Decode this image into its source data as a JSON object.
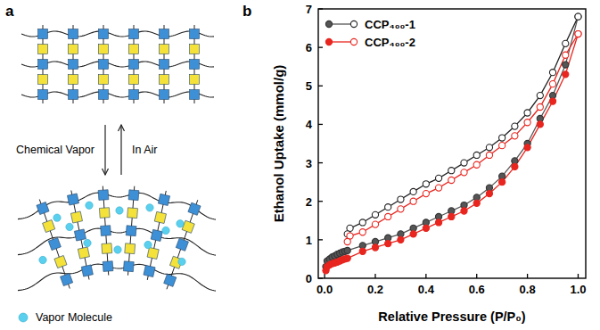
{
  "panel_labels": [
    "a",
    "b"
  ],
  "diagram": {
    "forward_label": "Chemical Vapor",
    "backward_label": "In Air",
    "legend_label": "Vapor Molecule"
  },
  "chart_data": {
    "type": "line",
    "x_label": "Relative Pressure (P/P₀)",
    "y_label": "Ethanol Uptake (mmol/g)",
    "xlim": [
      -0.025,
      1.03
    ],
    "ylim": [
      0,
      7
    ],
    "xticks": [
      {
        "value": 0,
        "label": "0.0"
      },
      0.2,
      0.4,
      0.6,
      0.8,
      {
        "value": 1,
        "label": "1.0"
      }
    ],
    "yticks": [
      0,
      1,
      2,
      3,
      4,
      5,
      6,
      7
    ],
    "legend": "upper-left",
    "grid": false,
    "series": [
      {
        "name": "CCP₄₀₀-1",
        "color": "#555555",
        "marker": "circle",
        "x": [
          0.005,
          0.01,
          0.02,
          0.03,
          0.04,
          0.05,
          0.06,
          0.07,
          0.08,
          0.09,
          0.15,
          0.2,
          0.25,
          0.3,
          0.35,
          0.4,
          0.45,
          0.5,
          0.55,
          0.6,
          0.65,
          0.7,
          0.75,
          0.8,
          0.85,
          0.9,
          0.95,
          1.0
        ],
        "values": [
          0.3,
          0.45,
          0.5,
          0.55,
          0.58,
          0.62,
          0.65,
          0.68,
          0.7,
          0.72,
          0.85,
          0.95,
          1.05,
          1.15,
          1.3,
          1.45,
          1.6,
          1.75,
          1.9,
          2.1,
          2.35,
          2.65,
          3.05,
          3.5,
          4.15,
          4.75,
          5.55,
          6.8
        ]
      },
      {
        "name": "CCP₄₀₀-1",
        "color": "#222222",
        "marker": "open-circle",
        "x": [
          1.0,
          0.95,
          0.9,
          0.85,
          0.8,
          0.75,
          0.7,
          0.65,
          0.6,
          0.55,
          0.5,
          0.45,
          0.4,
          0.35,
          0.3,
          0.25,
          0.2,
          0.15,
          0.1,
          0.09
        ],
        "values": [
          6.8,
          6.1,
          5.35,
          4.75,
          4.3,
          3.95,
          3.65,
          3.4,
          3.2,
          3.0,
          2.8,
          2.6,
          2.45,
          2.25,
          2.05,
          1.85,
          1.65,
          1.45,
          1.3,
          1.15
        ]
      },
      {
        "name": "CCP₄₀₀-2",
        "color": "#e8251f",
        "marker": "circle",
        "x": [
          0.005,
          0.01,
          0.02,
          0.03,
          0.04,
          0.05,
          0.06,
          0.07,
          0.08,
          0.09,
          0.15,
          0.2,
          0.25,
          0.3,
          0.35,
          0.4,
          0.45,
          0.5,
          0.55,
          0.6,
          0.65,
          0.7,
          0.75,
          0.8,
          0.85,
          0.9,
          0.95,
          1.0
        ],
        "values": [
          0.2,
          0.3,
          0.35,
          0.38,
          0.4,
          0.42,
          0.45,
          0.48,
          0.5,
          0.52,
          0.7,
          0.8,
          0.9,
          1.0,
          1.15,
          1.3,
          1.45,
          1.6,
          1.75,
          1.95,
          2.2,
          2.5,
          2.9,
          3.4,
          4.0,
          4.6,
          5.3,
          6.35
        ]
      },
      {
        "name": "CCP₄₀₀-2",
        "color": "#e8251f",
        "marker": "open-circle",
        "x": [
          1.0,
          0.95,
          0.9,
          0.85,
          0.8,
          0.75,
          0.7,
          0.65,
          0.6,
          0.55,
          0.5,
          0.45,
          0.4,
          0.35,
          0.3,
          0.25,
          0.2,
          0.15,
          0.1,
          0.09
        ],
        "values": [
          6.35,
          5.8,
          5.05,
          4.45,
          4.05,
          3.7,
          3.45,
          3.2,
          2.95,
          2.75,
          2.55,
          2.35,
          2.2,
          2.0,
          1.8,
          1.6,
          1.4,
          1.2,
          1.1,
          0.95
        ]
      }
    ]
  }
}
